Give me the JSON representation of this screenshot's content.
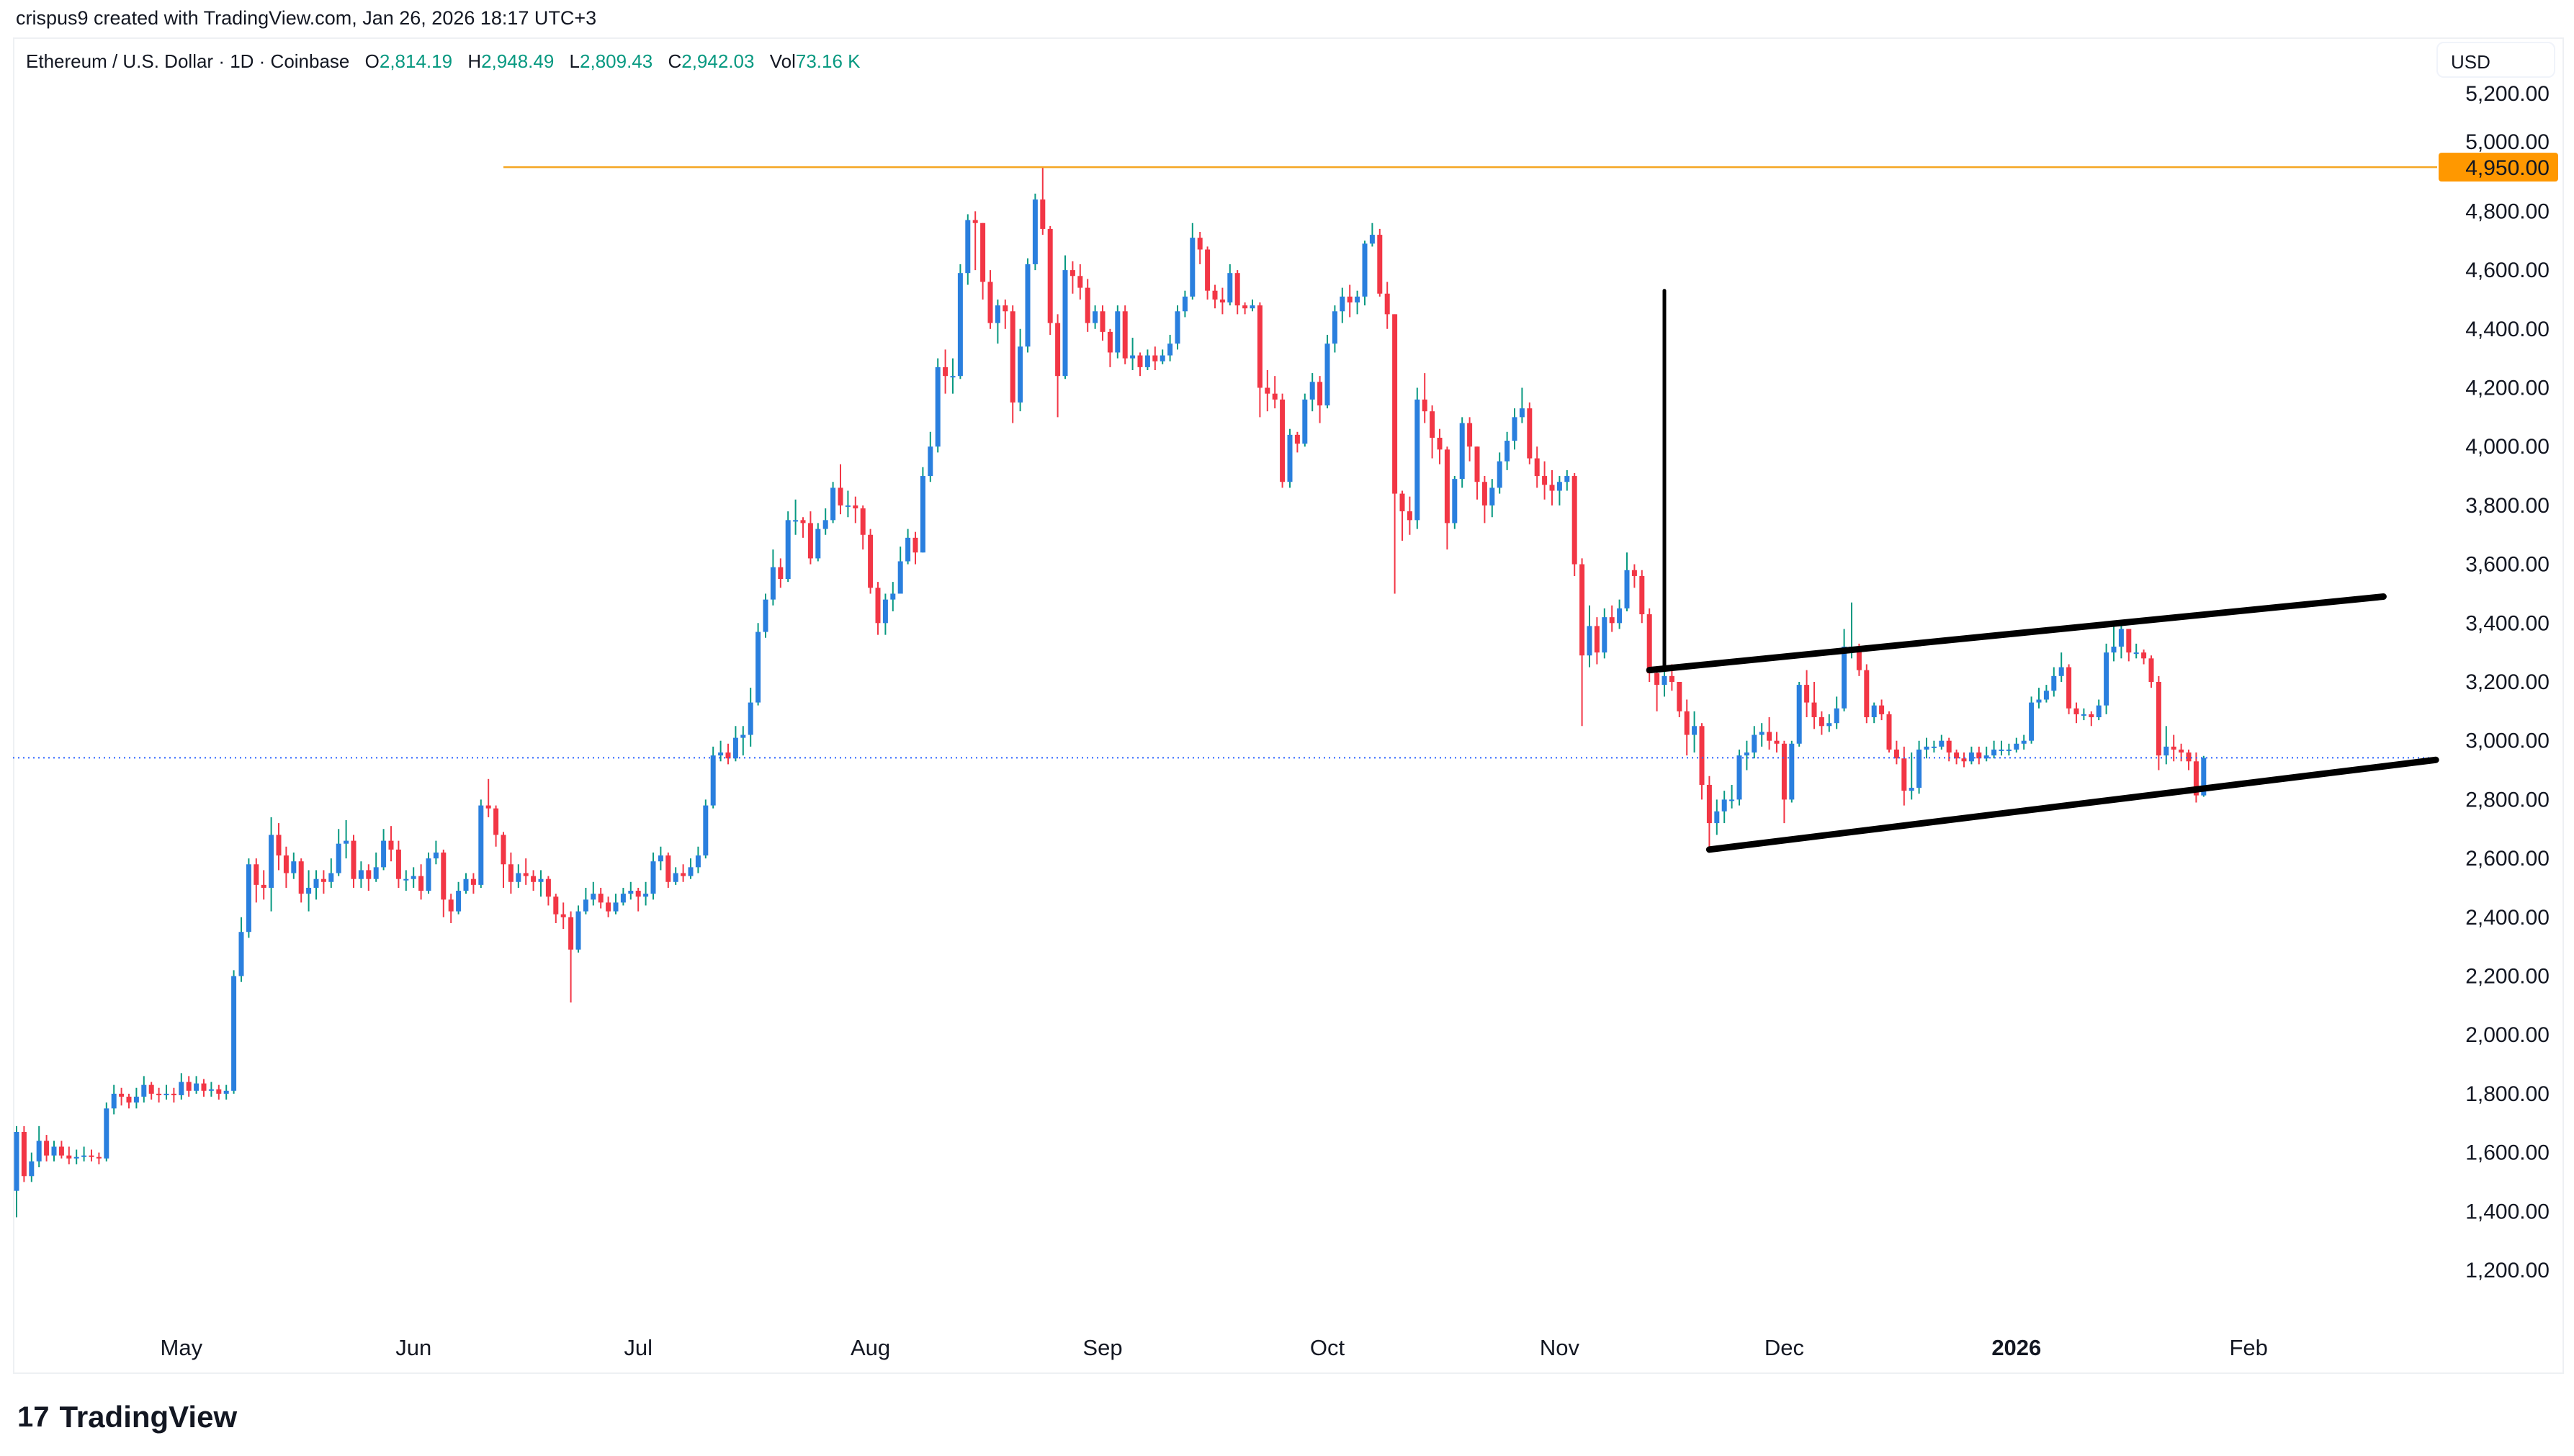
{
  "credit": "crispus9 created with TradingView.com, Jan 26, 2026 18:17 UTC+3",
  "legend": {
    "symbol": "Ethereum / U.S. Dollar · 1D · Coinbase",
    "o_label": "O",
    "o": "2,814.19",
    "h_label": "H",
    "h": "2,948.49",
    "l_label": "L",
    "l": "2,809.43",
    "c_label": "C",
    "c": "2,942.03",
    "vol_label": "Vol",
    "vol": "73.16 K"
  },
  "currency": "USD",
  "footer": {
    "logo_mark": "17",
    "brand": "TradingView"
  },
  "colors": {
    "up_body": "#2a7fde",
    "up_wick": "#089981",
    "down": "#f23645",
    "level_line": "#f5a623",
    "level_label_bg": "#ff9800",
    "price_line": "#2962ff",
    "drawing": "#000000"
  },
  "chart_data": {
    "type": "candlestick",
    "title": "",
    "ylim": [
      1050,
      5280
    ],
    "y_ticks": [
      "5,200.00",
      "5,000.00",
      "4,800.00",
      "4,600.00",
      "4,400.00",
      "4,200.00",
      "4,000.00",
      "3,800.00",
      "3,600.00",
      "3,400.00",
      "3,200.00",
      "3,000.00",
      "2,800.00",
      "2,600.00",
      "2,400.00",
      "2,200.00",
      "2,000.00",
      "1,800.00",
      "1,600.00",
      "1,400.00",
      "1,200.00"
    ],
    "x_ticks": [
      {
        "label": "May",
        "date": "2025-05-01"
      },
      {
        "label": "Jun",
        "date": "2025-06-01"
      },
      {
        "label": "Jul",
        "date": "2025-07-01"
      },
      {
        "label": "Aug",
        "date": "2025-08-01"
      },
      {
        "label": "Sep",
        "date": "2025-09-01"
      },
      {
        "label": "Oct",
        "date": "2025-10-01"
      },
      {
        "label": "Nov",
        "date": "2025-11-01"
      },
      {
        "label": "Dec",
        "date": "2025-12-01"
      },
      {
        "label": "2026",
        "date": "2026-01-01",
        "bold": true
      },
      {
        "label": "Feb",
        "date": "2026-02-01"
      }
    ],
    "first_open": 1470,
    "months": [
      {
        "month": "2025-04",
        "first_day": 9,
        "close": [
          1670,
          1520,
          1570,
          1640,
          1590,
          1620,
          1590,
          1580,
          1585,
          1590,
          1585,
          1580,
          1750,
          1800,
          1790,
          1770,
          1790,
          1830,
          1800,
          1795,
          1800,
          1795
        ],
        "high": [
          1690,
          1690,
          1600,
          1690,
          1660,
          1640,
          1640,
          1620,
          1610,
          1620,
          1610,
          1600,
          1770,
          1830,
          1820,
          1800,
          1820,
          1860,
          1840,
          1820,
          1830,
          1820
        ],
        "low": [
          1380,
          1500,
          1500,
          1550,
          1570,
          1570,
          1580,
          1560,
          1560,
          1570,
          1570,
          1560,
          1570,
          1730,
          1760,
          1750,
          1750,
          1770,
          1780,
          1770,
          1780,
          1770
        ]
      },
      {
        "month": "2025-05",
        "first_day": 1,
        "close": [
          1840,
          1810,
          1835,
          1810,
          1815,
          1800,
          1810,
          2200,
          2350,
          2580,
          2510,
          2500,
          2680,
          2610,
          2550,
          2590,
          2480,
          2500,
          2530,
          2520,
          2550,
          2650,
          2660,
          2530,
          2560,
          2530,
          2570,
          2660,
          2630,
          2530,
          2530
        ],
        "high": [
          1870,
          1860,
          1860,
          1850,
          1840,
          1830,
          1830,
          2220,
          2400,
          2600,
          2600,
          2560,
          2740,
          2720,
          2640,
          2620,
          2600,
          2560,
          2560,
          2560,
          2600,
          2700,
          2730,
          2680,
          2590,
          2580,
          2620,
          2700,
          2710,
          2660,
          2560
        ],
        "low": [
          1780,
          1790,
          1800,
          1790,
          1790,
          1780,
          1780,
          1800,
          2180,
          2330,
          2450,
          2460,
          2420,
          2560,
          2500,
          2530,
          2450,
          2420,
          2460,
          2480,
          2500,
          2540,
          2600,
          2500,
          2500,
          2490,
          2520,
          2560,
          2590,
          2500,
          2490
        ]
      },
      {
        "month": "2025-06",
        "first_day": 1,
        "close": [
          2540,
          2490,
          2600,
          2620,
          2460,
          2420,
          2490,
          2530,
          2510,
          2780,
          2770,
          2680,
          2580,
          2520,
          2550,
          2540,
          2520,
          2530,
          2470,
          2410,
          2400,
          2290,
          2420,
          2460,
          2480,
          2450,
          2420,
          2450,
          2480,
          2490
        ],
        "high": [
          2570,
          2580,
          2620,
          2660,
          2630,
          2480,
          2520,
          2550,
          2550,
          2800,
          2870,
          2780,
          2690,
          2620,
          2580,
          2600,
          2560,
          2560,
          2540,
          2480,
          2450,
          2420,
          2440,
          2500,
          2520,
          2500,
          2470,
          2480,
          2500,
          2520
        ],
        "low": [
          2500,
          2460,
          2480,
          2580,
          2400,
          2380,
          2410,
          2480,
          2480,
          2500,
          2740,
          2640,
          2500,
          2480,
          2500,
          2510,
          2490,
          2470,
          2440,
          2380,
          2360,
          2110,
          2280,
          2410,
          2440,
          2430,
          2400,
          2410,
          2440,
          2460
        ]
      },
      {
        "month": "2025-07",
        "first_day": 1,
        "close": [
          2470,
          2480,
          2590,
          2610,
          2520,
          2550,
          2540,
          2570,
          2610,
          2780,
          2950,
          2960,
          2940,
          3010,
          3020,
          3130,
          3370,
          3480,
          3590,
          3550,
          3750,
          3750,
          3740,
          3620,
          3720,
          3750,
          3860,
          3800,
          3800,
          3790,
          3700
        ],
        "high": [
          2500,
          2520,
          2620,
          2640,
          2620,
          2570,
          2580,
          2600,
          2640,
          2800,
          2980,
          3000,
          2990,
          3050,
          3050,
          3180,
          3400,
          3500,
          3650,
          3620,
          3780,
          3820,
          3760,
          3780,
          3740,
          3790,
          3880,
          3940,
          3850,
          3830,
          3800
        ],
        "low": [
          2420,
          2440,
          2460,
          2560,
          2500,
          2510,
          2520,
          2530,
          2550,
          2600,
          2770,
          2930,
          2920,
          2930,
          2950,
          2980,
          3120,
          3350,
          3460,
          3520,
          3540,
          3700,
          3690,
          3600,
          3610,
          3700,
          3740,
          3770,
          3760,
          3740,
          3650
        ]
      },
      {
        "month": "2025-08",
        "first_day": 1,
        "close": [
          3520,
          3400,
          3480,
          3500,
          3610,
          3690,
          3640,
          3900,
          4000,
          4270,
          4240,
          4240,
          4590,
          4770,
          4760,
          4560,
          4420,
          4480,
          4460,
          4150,
          4340,
          4620,
          4840,
          4740,
          4420,
          4240,
          4600,
          4580,
          4540,
          4420,
          4460
        ],
        "high": [
          3720,
          3540,
          3500,
          3540,
          3660,
          3720,
          3710,
          3930,
          4050,
          4300,
          4330,
          4300,
          4620,
          4790,
          4800,
          4760,
          4600,
          4500,
          4500,
          4480,
          4400,
          4640,
          4860,
          4950,
          4750,
          4450,
          4650,
          4630,
          4620,
          4570,
          4480
        ],
        "low": [
          3500,
          3360,
          3360,
          3440,
          3560,
          3600,
          3600,
          3640,
          3880,
          3980,
          4180,
          4180,
          4230,
          4550,
          4600,
          4500,
          4400,
          4350,
          4400,
          4080,
          4120,
          4320,
          4600,
          4720,
          4380,
          4100,
          4230,
          4520,
          4500,
          4390,
          4400
        ]
      },
      {
        "month": "2025-09",
        "first_day": 1,
        "close": [
          4390,
          4320,
          4460,
          4300,
          4310,
          4270,
          4310,
          4290,
          4310,
          4350,
          4460,
          4510,
          4710,
          4670,
          4530,
          4500,
          4490,
          4590,
          4480,
          4470,
          4480,
          4200,
          4180,
          4160,
          3880,
          4040,
          4010,
          4160,
          4220,
          4140
        ],
        "high": [
          4480,
          4400,
          4480,
          4480,
          4370,
          4320,
          4330,
          4340,
          4330,
          4380,
          4480,
          4530,
          4760,
          4730,
          4680,
          4550,
          4540,
          4620,
          4600,
          4490,
          4500,
          4490,
          4260,
          4240,
          4180,
          4060,
          4050,
          4180,
          4250,
          4240
        ],
        "low": [
          4360,
          4270,
          4300,
          4280,
          4260,
          4240,
          4260,
          4260,
          4280,
          4290,
          4330,
          4440,
          4500,
          4620,
          4500,
          4470,
          4450,
          4480,
          4450,
          4450,
          4460,
          4100,
          4120,
          4130,
          3860,
          3860,
          3980,
          4000,
          4120,
          4080
        ]
      },
      {
        "month": "2025-10",
        "first_day": 1,
        "close": [
          4350,
          4460,
          4510,
          4490,
          4510,
          4690,
          4720,
          4520,
          4450,
          3840,
          3780,
          3750,
          4160,
          4120,
          4030,
          3990,
          3740,
          3890,
          4080,
          4000,
          3880,
          3800,
          3860,
          3950,
          4020,
          4100,
          4130,
          3960,
          3900,
          3870,
          3850
        ],
        "high": [
          4380,
          4480,
          4540,
          4550,
          4530,
          4700,
          4760,
          4740,
          4560,
          4450,
          3850,
          3830,
          4200,
          4250,
          4140,
          4060,
          4000,
          3900,
          4100,
          4100,
          4000,
          3900,
          3890,
          3980,
          4050,
          4130,
          4200,
          4150,
          4000,
          3950,
          3920
        ],
        "low": [
          4130,
          4320,
          4420,
          4440,
          4450,
          4480,
          4680,
          4510,
          4400,
          3500,
          3680,
          3700,
          3720,
          4080,
          3960,
          3940,
          3650,
          3720,
          3860,
          3950,
          3820,
          3740,
          3760,
          3840,
          3920,
          3990,
          4080,
          3940,
          3860,
          3820,
          3800
        ]
      },
      {
        "month": "2025-11",
        "first_day": 1,
        "close": [
          3880,
          3900,
          3600,
          3290,
          3390,
          3300,
          3420,
          3400,
          3450,
          3580,
          3560,
          3430,
          3230,
          3190,
          3220,
          3200,
          3100,
          3020,
          3050,
          2850,
          2720,
          2760,
          2800,
          2800,
          2950,
          2960,
          3020,
          3030,
          3000,
          2990
        ],
        "high": [
          3900,
          3920,
          3910,
          3620,
          3460,
          3420,
          3450,
          3460,
          3480,
          3640,
          3600,
          3580,
          3450,
          3250,
          3250,
          3260,
          3200,
          3140,
          3100,
          3060,
          2880,
          2800,
          2830,
          2850,
          2970,
          3000,
          3050,
          3060,
          3080,
          3030
        ],
        "low": [
          3800,
          3850,
          3560,
          3050,
          3250,
          3260,
          3280,
          3370,
          3380,
          3440,
          3520,
          3400,
          3200,
          3100,
          3150,
          3170,
          3080,
          2950,
          2960,
          2800,
          2620,
          2680,
          2720,
          2770,
          2780,
          2900,
          2940,
          2980,
          2970,
          2960
        ]
      },
      {
        "month": "2025-12",
        "first_day": 1,
        "close": [
          2800,
          2990,
          3190,
          3130,
          3080,
          3050,
          3060,
          3110,
          3320,
          3320,
          3240,
          3080,
          3120,
          3090,
          2970,
          2940,
          2830,
          2840,
          2970,
          2980,
          2980,
          3000,
          2960,
          2940,
          2930,
          2960,
          2940,
          2950,
          2970,
          2970,
          2970
        ],
        "high": [
          3000,
          3000,
          3200,
          3240,
          3200,
          3100,
          3090,
          3150,
          3380,
          3470,
          3330,
          3260,
          3130,
          3140,
          3100,
          3000,
          2980,
          2960,
          3000,
          3010,
          3000,
          3020,
          3010,
          2970,
          2960,
          2980,
          2980,
          2980,
          3000,
          3000,
          2990
        ],
        "low": [
          2720,
          2790,
          2980,
          3080,
          3040,
          3020,
          3030,
          3040,
          3100,
          3280,
          3220,
          3060,
          3060,
          3070,
          2960,
          2920,
          2780,
          2800,
          2820,
          2940,
          2960,
          2970,
          2930,
          2920,
          2910,
          2920,
          2920,
          2930,
          2940,
          2950,
          2950
        ]
      },
      {
        "month": "2026-01",
        "first_day": 1,
        "close": [
          2990,
          3000,
          3130,
          3140,
          3170,
          3220,
          3250,
          3110,
          3090,
          3090,
          3080,
          3120,
          3300,
          3320,
          3380,
          3300,
          3300,
          3280,
          3200,
          2950,
          2980,
          2970,
          2960,
          2930,
          2814.19,
          2942.03
        ],
        "high": [
          3010,
          3020,
          3150,
          3180,
          3190,
          3250,
          3300,
          3260,
          3130,
          3110,
          3100,
          3140,
          3330,
          3400,
          3400,
          3380,
          3330,
          3310,
          3290,
          3220,
          3050,
          3020,
          2990,
          2970,
          2960,
          2948.49
        ],
        "low": [
          2960,
          2970,
          2990,
          3110,
          3130,
          3150,
          3200,
          3090,
          3060,
          3070,
          3050,
          3070,
          3090,
          3270,
          3280,
          3270,
          3280,
          3260,
          3180,
          2900,
          2920,
          2930,
          2930,
          2900,
          2790,
          2809.43
        ]
      }
    ],
    "last_price": 2942.03,
    "horizontal_level": {
      "price": 4950,
      "label": "4,950.00",
      "start_date": "2025-06-13"
    },
    "drawings": [
      {
        "name": "channel-upper-line",
        "from": {
          "date": "2025-11-13",
          "price": 3240
        },
        "to": {
          "date": "2026-02-19",
          "price": 3490
        }
      },
      {
        "name": "channel-lower-line",
        "from": {
          "date": "2025-11-21",
          "price": 2630
        },
        "to": {
          "date": "2026-02-26",
          "price": 2935
        }
      },
      {
        "name": "pole-line",
        "from": {
          "date": "2025-11-15",
          "price": 4530
        },
        "to": {
          "date": "2025-11-15",
          "price": 3250
        }
      }
    ]
  }
}
